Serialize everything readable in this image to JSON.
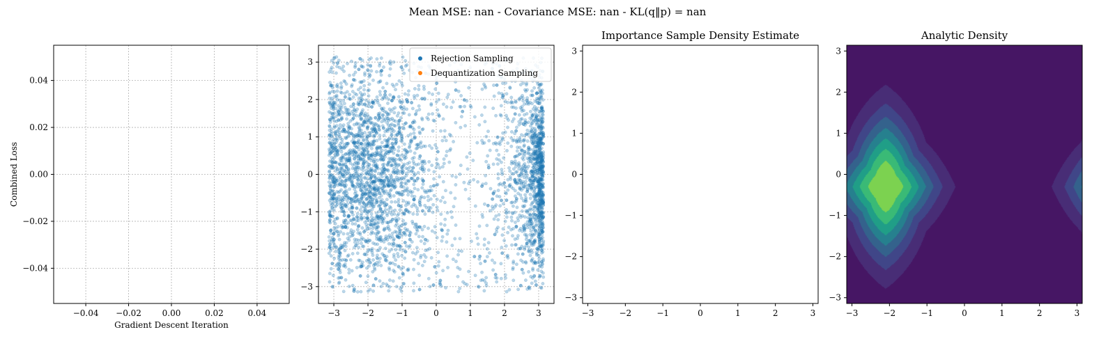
{
  "figure": {
    "suptitle": "Mean MSE: nan - Covariance MSE: nan - KL(q‖p) = nan"
  },
  "colors": {
    "rejection": "#1f77b4",
    "dequantization": "#ff7f0e"
  },
  "chart_data": [
    {
      "type": "line",
      "title": "",
      "xlabel": "Gradient Descent Iteration",
      "ylabel": "Combined Loss",
      "xlim": [
        -0.055,
        0.055
      ],
      "ylim": [
        -0.055,
        0.055
      ],
      "xticks": [
        -0.04,
        -0.02,
        0.0,
        0.02,
        0.04
      ],
      "yticks": [
        -0.04,
        -0.02,
        0.0,
        0.02,
        0.04
      ],
      "xtick_labels": [
        "−0.04",
        "−0.02",
        "0.00",
        "0.02",
        "0.04"
      ],
      "ytick_labels": [
        "−0.04",
        "−0.02",
        "0.00",
        "0.02",
        "0.04"
      ],
      "grid": true,
      "series": []
    },
    {
      "type": "scatter",
      "title": "",
      "xlim": [
        -3.45,
        3.45
      ],
      "ylim": [
        -3.45,
        3.45
      ],
      "xticks": [
        -3,
        -2,
        -1,
        0,
        1,
        2,
        3
      ],
      "yticks": [
        -3,
        -2,
        -1,
        0,
        1,
        2,
        3
      ],
      "xtick_labels": [
        "−3",
        "−2",
        "−1",
        "0",
        "1",
        "2",
        "3"
      ],
      "ytick_labels": [
        "−3",
        "−2",
        "−1",
        "0",
        "1",
        "2",
        "3"
      ],
      "grid": true,
      "legend": {
        "placement": "top-right",
        "entries": [
          "Rejection Sampling",
          "Dequantization Sampling"
        ]
      },
      "series": [
        {
          "name": "Rejection Sampling",
          "approx_count": 10000,
          "dense_regions": [
            {
              "x": -2.0,
              "y": 0.0,
              "sx": 0.9,
              "sy": 1.4
            },
            {
              "x": 3.0,
              "y": 0.0,
              "sx": 0.5,
              "sy": 1.3
            }
          ],
          "support": {
            "x": [
              -3.14,
              3.14
            ],
            "y": [
              -3.14,
              3.14
            ]
          }
        },
        {
          "name": "Dequantization Sampling",
          "approx_count": 0
        }
      ]
    },
    {
      "type": "heatmap",
      "title": "Importance Sample Density Estimate",
      "xlim": [
        -3.14,
        3.14
      ],
      "ylim": [
        -3.14,
        3.14
      ],
      "xticks": [
        -3,
        -2,
        -1,
        0,
        1,
        2,
        3
      ],
      "yticks": [
        -3,
        -2,
        -1,
        0,
        1,
        2,
        3
      ],
      "xtick_labels": [
        "−3",
        "−2",
        "−1",
        "0",
        "1",
        "2",
        "3"
      ],
      "ytick_labels": [
        "−3",
        "−2",
        "−1",
        "0",
        "1",
        "2",
        "3"
      ],
      "grid": false,
      "values": []
    },
    {
      "type": "heatmap",
      "title": "Analytic Density",
      "xlim": [
        -3.14,
        3.14
      ],
      "ylim": [
        -3.14,
        3.14
      ],
      "xticks": [
        -3,
        -2,
        -1,
        0,
        1,
        2,
        3
      ],
      "yticks": [
        -3,
        -2,
        -1,
        0,
        1,
        2,
        3
      ],
      "xtick_labels": [
        "−3",
        "−2",
        "−1",
        "0",
        "1",
        "2",
        "3"
      ],
      "ytick_labels": [
        "−3",
        "−2",
        "−1",
        "0",
        "1",
        "2",
        "3"
      ],
      "grid": false,
      "colormap": "viridis",
      "mode_center": {
        "x": -2.1,
        "y": -0.3
      },
      "saddle_points": [
        {
          "x": 1.0,
          "y": -0.3
        },
        {
          "x": -2.1,
          "y": 2.85
        }
      ],
      "contour_levels": 8
    }
  ]
}
